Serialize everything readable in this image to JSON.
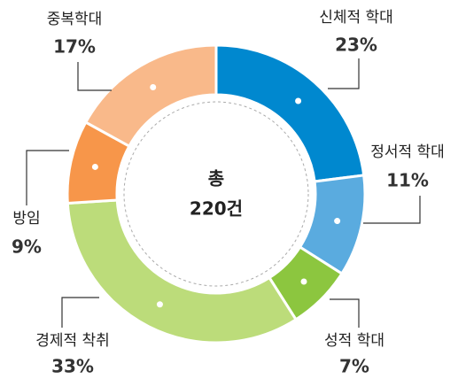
{
  "chart_data": {
    "type": "donut",
    "total_label": "총",
    "total": "220건",
    "categories": [
      "신체적 학대",
      "정서적 학대",
      "성적 학대",
      "경제적 착취",
      "방임",
      "중복학대"
    ],
    "values": [
      23,
      11,
      7,
      33,
      9,
      17
    ],
    "value_labels": [
      "23%",
      "11%",
      "7%",
      "33%",
      "9%",
      "17%"
    ],
    "colors": [
      "#0088cf",
      "#5aabdf",
      "#8cc63f",
      "#bcdc7a",
      "#f7964a",
      "#f9b98a"
    ]
  }
}
